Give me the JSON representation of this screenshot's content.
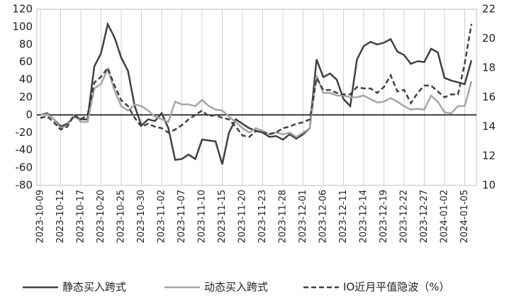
{
  "chart_data": {
    "type": "line",
    "categories": [
      "2023-10-09",
      null,
      null,
      "2023-10-12",
      null,
      null,
      "2023-10-17",
      null,
      null,
      "2023-10-20",
      null,
      null,
      "2023-10-25",
      null,
      null,
      "2023-10-30",
      null,
      null,
      "2023-11-02",
      null,
      null,
      "2023-11-07",
      null,
      null,
      "2023-11-10",
      null,
      null,
      "2023-11-15",
      null,
      null,
      "2023-11-20",
      null,
      null,
      "2023-11-23",
      null,
      null,
      "2023-11-28",
      null,
      null,
      "2023-12-01",
      null,
      null,
      "2023-12-06",
      null,
      null,
      "2023-12-11",
      null,
      null,
      "2023-12-14",
      null,
      null,
      "2023-12-19",
      null,
      null,
      "2023-12-22",
      null,
      null,
      "2023-12-27",
      null,
      null,
      "2024-01-02",
      null,
      null,
      "2024-01-05",
      null
    ],
    "series": [
      {
        "name": "静态买入跨式",
        "color": "#404040",
        "dash": false,
        "axis": "y",
        "values": [
          0,
          2,
          -5,
          -13,
          -10,
          -2,
          -5,
          -5,
          55,
          70,
          103,
          88,
          65,
          50,
          10,
          -12,
          -5,
          -7,
          2,
          -15,
          -51,
          -50,
          -45,
          -50,
          -28,
          -29,
          -30,
          -56,
          -20,
          -5,
          -10,
          -15,
          -18,
          -20,
          -25,
          -24,
          -28,
          -22,
          -27,
          -22,
          -15,
          63,
          43,
          47,
          40,
          18,
          10,
          63,
          78,
          83,
          80,
          82,
          86,
          72,
          68,
          58,
          61,
          60,
          75,
          71,
          42,
          39,
          37,
          35,
          62
        ]
      },
      {
        "name": "动态买入跨式",
        "color": "#a6a6a6",
        "dash": false,
        "axis": "y",
        "values": [
          0,
          1,
          -5,
          -15,
          -12,
          0,
          -8,
          -8,
          30,
          35,
          52,
          28,
          10,
          5,
          12,
          10,
          5,
          -2,
          -5,
          -8,
          15,
          12,
          12,
          10,
          17,
          10,
          6,
          5,
          -2,
          -8,
          -15,
          -20,
          -15,
          -18,
          -22,
          -20,
          -22,
          -20,
          -25,
          -20,
          -15,
          45,
          25,
          25,
          22,
          22,
          20,
          20,
          22,
          18,
          14,
          15,
          19,
          15,
          10,
          6,
          7,
          6,
          22,
          15,
          3,
          2,
          10,
          10,
          38
        ]
      },
      {
        "name": "IO近月平值隐波（%）",
        "color": "#404040",
        "dash": true,
        "axis": "y2",
        "values": [
          14.6,
          14.7,
          14.3,
          13.8,
          14.0,
          14.8,
          14.5,
          14.8,
          17.0,
          17.4,
          18.0,
          16.8,
          15.8,
          15.4,
          14.6,
          14.0,
          14.2,
          14.0,
          13.9,
          13.6,
          13.8,
          14.1,
          14.5,
          14.8,
          15.1,
          14.7,
          14.8,
          14.6,
          14.5,
          14.0,
          13.4,
          13.3,
          13.7,
          13.6,
          13.5,
          13.6,
          13.9,
          14.0,
          14.2,
          14.3,
          14.5,
          17.3,
          16.5,
          16.5,
          16.3,
          16.2,
          16.2,
          16.7,
          16.6,
          16.6,
          16.3,
          16.7,
          17.5,
          16.4,
          16.5,
          15.6,
          16.3,
          16.8,
          16.8,
          16.4,
          16.0,
          16.2,
          16.2,
          18.3,
          21.0
        ]
      }
    ],
    "ylim": [
      -80,
      120
    ],
    "yticks": [
      -80,
      -60,
      -40,
      -20,
      0,
      20,
      40,
      60,
      80,
      100,
      120
    ],
    "y2lim": [
      10,
      22
    ],
    "y2ticks": [
      10,
      12,
      14,
      16,
      18,
      20,
      22
    ],
    "xgrid": true,
    "zero_line": true,
    "legend": "bottom"
  }
}
